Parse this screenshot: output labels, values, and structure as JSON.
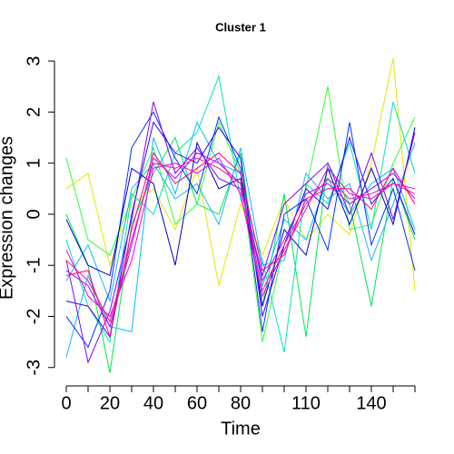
{
  "chart_data": {
    "type": "line",
    "title": "Cluster 1",
    "x_label": "Time",
    "y_label": "Expression changes",
    "x": [
      0,
      10,
      20,
      30,
      40,
      50,
      60,
      70,
      80,
      90,
      100,
      110,
      120,
      130,
      140,
      150,
      160
    ],
    "xlim": [
      0,
      160
    ],
    "ylim": [
      -3.36,
      3.18
    ],
    "xticks": [
      0,
      {
        "value": 10,
        "label": null
      },
      20,
      {
        "value": 30,
        "label": null
      },
      40,
      {
        "value": 50,
        "label": null
      },
      60,
      {
        "value": 70,
        "label": null
      },
      80,
      {
        "value": 90,
        "label": null
      },
      {
        "value": 100,
        "label": null
      },
      110,
      {
        "value": 120,
        "label": null
      },
      {
        "value": 130,
        "label": null
      },
      140,
      {
        "value": 150,
        "label": null
      },
      {
        "value": 160,
        "label": null
      }
    ],
    "yticks": [
      -3,
      -2,
      -1,
      0,
      1,
      2,
      3
    ],
    "series": [
      {
        "color": "#e6e600",
        "values": [
          0.5,
          0.8,
          -1.0,
          0.2,
          0.5,
          -0.3,
          0.9,
          -1.4,
          0.2,
          -0.8,
          0.3,
          -0.5,
          0.0,
          -0.4,
          1.0,
          3.05,
          -1.5
        ]
      },
      {
        "color": "#33ff33",
        "values": [
          1.1,
          -0.5,
          -0.8,
          0.3,
          1.3,
          -0.2,
          0.2,
          1.8,
          0.8,
          -2.5,
          -0.6,
          0.5,
          2.5,
          -0.3,
          -0.2,
          1.0,
          1.9
        ]
      },
      {
        "color": "#00e64d",
        "values": [
          0.0,
          -1.0,
          -3.1,
          -0.2,
          0.8,
          1.5,
          0.2,
          0.0,
          1.2,
          -1.8,
          0.4,
          -2.4,
          1.0,
          0.2,
          -1.8,
          0.7,
          -0.5
        ]
      },
      {
        "color": "#00e6b8",
        "values": [
          -0.5,
          -1.8,
          -2.5,
          0.4,
          0.0,
          1.2,
          1.6,
          2.7,
          0.3,
          -0.9,
          -2.7,
          0.6,
          0.2,
          1.4,
          -0.3,
          2.2,
          0.8
        ]
      },
      {
        "color": "#00bfff",
        "values": [
          -2.8,
          -1.2,
          -2.2,
          -2.3,
          1.5,
          0.4,
          1.8,
          1.0,
          0.8,
          -1.4,
          -0.1,
          -0.5,
          0.7,
          0.0,
          0.6,
          0.9,
          -0.3
        ]
      },
      {
        "color": "#1ab2ff",
        "values": [
          -1.3,
          -0.6,
          -1.7,
          0.5,
          1.0,
          0.3,
          0.6,
          -0.2,
          1.3,
          -1.0,
          -0.9,
          0.8,
          0.3,
          0.6,
          -0.9,
          0.2,
          1.4
        ]
      },
      {
        "color": "#0033ff",
        "values": [
          -2.0,
          -2.6,
          -1.5,
          1.3,
          2.0,
          1.1,
          0.4,
          1.9,
          0.9,
          -2.3,
          0.0,
          0.3,
          -0.7,
          1.8,
          -0.6,
          0.5,
          -1.1
        ]
      },
      {
        "color": "#0000cc",
        "values": [
          -0.1,
          -1.0,
          -1.2,
          0.9,
          0.6,
          -1.0,
          1.4,
          0.5,
          0.7,
          -1.8,
          -0.3,
          -0.8,
          0.9,
          -0.2,
          0.9,
          -0.2,
          1.7
        ]
      },
      {
        "color": "#3300ff",
        "values": [
          -1.7,
          -1.8,
          -2.4,
          0.0,
          1.8,
          1.2,
          1.0,
          1.7,
          1.1,
          -2.0,
          -0.6,
          0.5,
          0.1,
          1.5,
          0.2,
          0.7,
          -0.4
        ]
      },
      {
        "color": "#8000ff",
        "values": [
          -0.9,
          -2.9,
          -1.9,
          -0.1,
          2.2,
          0.8,
          1.3,
          0.7,
          0.5,
          -1.2,
          0.2,
          0.6,
          1.0,
          0.0,
          1.2,
          -0.1,
          1.6
        ]
      },
      {
        "color": "#b300ff",
        "values": [
          -1.1,
          -1.4,
          -2.2,
          -0.6,
          1.1,
          0.7,
          1.2,
          1.0,
          0.6,
          -1.3,
          -0.5,
          0.4,
          0.6,
          0.2,
          0.5,
          0.8,
          0.3
        ]
      },
      {
        "color": "#e600e6",
        "values": [
          -0.7,
          -1.6,
          -2.0,
          -0.9,
          0.9,
          1.0,
          0.8,
          1.1,
          0.4,
          -1.6,
          -0.7,
          0.1,
          0.9,
          0.4,
          0.3,
          0.6,
          0.5
        ]
      },
      {
        "color": "#ff1493",
        "values": [
          -0.9,
          -1.3,
          -2.1,
          -0.5,
          1.0,
          0.9,
          1.1,
          0.9,
          0.6,
          -1.5,
          -0.6,
          0.2,
          0.7,
          0.3,
          0.4,
          0.6,
          0.4
        ]
      },
      {
        "color": "#ff0080",
        "values": [
          -1.2,
          -1.1,
          -2.4,
          -0.3,
          1.2,
          0.6,
          0.9,
          1.2,
          0.8,
          -1.1,
          -0.8,
          0.3,
          0.5,
          0.5,
          0.1,
          0.9,
          0.2
        ]
      }
    ]
  }
}
